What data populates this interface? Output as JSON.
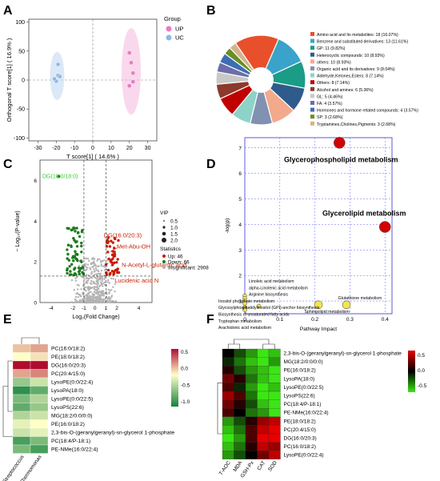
{
  "panels": {
    "A": "A",
    "B": "B",
    "C": "C",
    "D": "D",
    "E": "E",
    "F": "F"
  },
  "chart_data": [
    {
      "id": "A",
      "type": "scatter",
      "xlabel": "T score[1] ( 14.6% )",
      "ylabel": "Orthogonal T score[1] ( 16.9% )",
      "xlim": [
        -35,
        35
      ],
      "ylim": [
        -105,
        105
      ],
      "xticks": [
        "-30",
        "-20",
        "-10",
        "0",
        "10",
        "20",
        "30"
      ],
      "yticks": [
        "-100",
        "-50",
        "0",
        "50",
        "100"
      ],
      "legend_title": "Group",
      "colors": {
        "UP": "#e87bc4",
        "UC": "#8fb8e6"
      },
      "series": [
        {
          "name": "UP",
          "points": [
            [
              20,
              47
            ],
            [
              20,
              -10
            ],
            [
              22,
              -3
            ],
            [
              22,
              12
            ],
            [
              21,
              30
            ]
          ]
        },
        {
          "name": "UC",
          "points": [
            [
              -19,
              27
            ],
            [
              -19,
              8
            ],
            [
              -20,
              -2
            ],
            [
              -21,
              2
            ],
            [
              -18,
              6
            ]
          ]
        }
      ]
    },
    {
      "id": "B",
      "type": "pie",
      "legend": [
        "Amino acid and Its metabolites: 18 (16.07%)",
        "Benzene and substituted derivatives: 13 (11.61%)",
        "GP: 11 (9.82%)",
        "Heterocyclic compounds: 10 (8.93%)",
        "others: 10 (8.93%)",
        "Organic acid and its derivatives: 9 (8.04%)",
        "Aldehyde,Ketones,Esters: 8 (7.14%)",
        "Others: 8 (7.14%)",
        "Alcohol and amines: 6 (5.36%)",
        "GL: 5 (4.46%)",
        "FA: 4 (3.57%)",
        "Hormones and hormone related compounds: 4 (3.57%)",
        "SP: 3 (2.68%)",
        "Tryptamines,Cholines,Pigments: 3 (2.68%)"
      ],
      "values": [
        18,
        13,
        11,
        10,
        10,
        9,
        8,
        8,
        6,
        5,
        4,
        4,
        3,
        3
      ],
      "colors": [
        "#e8502c",
        "#3aa3c9",
        "#1a9c86",
        "#2f5b8c",
        "#f3a98b",
        "#8191b2",
        "#8dd3c7",
        "#c00000",
        "#8b3a2c",
        "#c8c8c8",
        "#6d6da8",
        "#3c6eb4",
        "#6b8e23",
        "#d2b48c"
      ]
    },
    {
      "id": "C",
      "type": "scatter",
      "xlabel": "Log₂(Fold Change)",
      "ylabel": "− Log₁₀(P-value)",
      "xticks": [
        "-4",
        "-2",
        "-1",
        "0",
        "1",
        "2",
        "4"
      ],
      "yticks": [
        "0",
        "2",
        "4",
        "6"
      ],
      "xlim": [
        -5,
        5.2
      ],
      "ylim": [
        0,
        7
      ],
      "labels": [
        {
          "text": "DG(18:0/18:0)",
          "x": -3.3,
          "y": 6.4,
          "color": "#33cc33"
        },
        {
          "text": "DG(16:0/20:3)",
          "x": 0.8,
          "y": 3.3,
          "color": "#cc2200"
        },
        {
          "text": "Met-Abu-OH",
          "x": 1.7,
          "y": 2.7,
          "color": "#cc2200"
        },
        {
          "text": "N-Acetyl-L-glutamic acid",
          "x": 2.0,
          "y": 1.7,
          "color": "#cc2200"
        },
        {
          "text": "Lucidenic acid N",
          "x": 1.5,
          "y": 1.3,
          "color": "#cc2200"
        }
      ],
      "vip_title": "VIP",
      "vip_sizes": [
        "0.5",
        "1.0",
        "1.5",
        "2.0"
      ],
      "stats_title": "Statistics",
      "stats": [
        "Up: 46",
        "Down: 66",
        "Insignificant: 2908"
      ],
      "colors": {
        "up": "#cc1a00",
        "down": "#1a7a1a",
        "insignificant": "#b3b3b3"
      }
    },
    {
      "id": "D",
      "type": "scatter",
      "xlabel": "Pathway Impact",
      "ylabel": "-log(p)",
      "xticks": [
        "0",
        "0.1",
        "0.2",
        "0.3",
        "0.4"
      ],
      "yticks": [
        "1",
        "2",
        "3",
        "4",
        "5",
        "6",
        "7"
      ],
      "xlim": [
        0,
        0.42
      ],
      "ylim": [
        0.5,
        7.4
      ],
      "points": [
        {
          "name": "Glycerophospholipid metabolism",
          "x": 0.27,
          "y": 7.2,
          "color": "#d40000",
          "size": "large"
        },
        {
          "name": "Glycerolipid metabolism",
          "x": 0.4,
          "y": 3.9,
          "color": "#d40000",
          "size": "large"
        },
        {
          "name": "Linoleic acid metabolism",
          "x": 0.0,
          "y": 1.2,
          "color": "#f2e64d",
          "size": "small"
        },
        {
          "name": "alpha-Linolenic acid metabolism",
          "x": 0.0,
          "y": 1.1,
          "color": "#f2e64d",
          "size": "small"
        },
        {
          "name": "Arginine biosynthesis",
          "x": 0.0,
          "y": 1.0,
          "color": "#f2e64d",
          "size": "small"
        },
        {
          "name": "Inositol phosphate metabolism",
          "x": 0.0,
          "y": 0.9,
          "color": "#f2e64d",
          "size": "small"
        },
        {
          "name": "Glycosylphosphatidylinositol (GPI)-anchor biosynthesis",
          "x": 0.04,
          "y": 0.8,
          "color": "#f2e64d",
          "size": "small"
        },
        {
          "name": "Biosynthesis of unsaturated fatty acids",
          "x": 0.0,
          "y": 0.75,
          "color": "#f2e64d",
          "size": "small"
        },
        {
          "name": "Tryptophan metabolism",
          "x": 0.0,
          "y": 0.7,
          "color": "#f2e64d",
          "size": "small"
        },
        {
          "name": "Arachidonic acid metabolism",
          "x": 0.0,
          "y": 0.65,
          "color": "#f2e64d",
          "size": "small"
        },
        {
          "name": "Glutathione metabolism",
          "x": 0.29,
          "y": 0.85,
          "color": "#f2e64d",
          "size": "medium"
        },
        {
          "name": "Sphingolipid metabolism",
          "x": 0.21,
          "y": 0.85,
          "color": "#f2e64d",
          "size": "medium"
        }
      ]
    },
    {
      "id": "E",
      "type": "heatmap",
      "columns": [
        "Streptococcus",
        "Thermomonas"
      ],
      "rows": [
        "PC(16:0/18:2)",
        "PE(18:0/18:2)",
        "DG(16:0/20:3)",
        "PC(20:4/15:0)",
        "LysoPE(0:0/22:4)",
        "LysoPA(18:0)",
        "LysoPE(0:0/22:5)",
        "LysoPS(22:6)",
        "MG(18:2/0:0/0:0)",
        "PE(16:0/18:2)",
        "2,3-bis-O-(geranylgeranyl)-sn-glycerol 1-phosphate",
        "PC(18:4/P-18:1)",
        "PE-NMe(16:0/22:4)"
      ],
      "values": [
        [
          0.2,
          0.3
        ],
        [
          0.0,
          0.1
        ],
        [
          0.8,
          0.9
        ],
        [
          0.3,
          0.4
        ],
        [
          -0.4,
          -0.2
        ],
        [
          -0.8,
          -0.6
        ],
        [
          -0.5,
          -0.3
        ],
        [
          -0.6,
          -0.4
        ],
        [
          -0.3,
          -0.2
        ],
        [
          -0.1,
          0.0
        ],
        [
          -0.2,
          -0.1
        ],
        [
          -0.7,
          -0.5
        ],
        [
          -0.5,
          -0.7
        ]
      ],
      "legend_ticks": [
        "0.5",
        "0.0",
        "-0.5",
        "-1.0"
      ]
    },
    {
      "id": "F",
      "type": "heatmap",
      "columns": [
        "T-AOC",
        "MDA",
        "GSH-Px",
        "CAT",
        "SOD"
      ],
      "rows": [
        "2,3-bis-O-(geranylgeranyl)-sn-glycerol 1-phosphate",
        "MG(18:2/0:0/0:0)",
        "PE(16:0/18:2)",
        "LysoPA(18:0)",
        "LysoPE(0:0/22:5)",
        "LysoPS(22:6)",
        "PC(18:4/P-18:1)",
        "PE-NMe(16:0/22:4)",
        "PE(18:0/18:2)",
        "PC(20:4/15:0)",
        "DG(16:0/20:3)",
        "PC(16:0/18:2)",
        "LysoPE(0:0/22:4)"
      ],
      "values": [
        [
          0.0,
          -0.2,
          -0.4,
          -0.6,
          -0.5
        ],
        [
          -0.1,
          -0.3,
          -0.5,
          -0.6,
          -0.4
        ],
        [
          0.1,
          -0.2,
          -0.4,
          -0.5,
          -0.6
        ],
        [
          0.3,
          0.1,
          -0.3,
          -0.5,
          -0.6
        ],
        [
          0.2,
          -0.1,
          -0.4,
          -0.6,
          -0.5
        ],
        [
          0.4,
          0.2,
          -0.3,
          -0.6,
          -0.7
        ],
        [
          0.3,
          0.1,
          -0.2,
          -0.5,
          -0.6
        ],
        [
          0.2,
          0.0,
          -0.3,
          -0.4,
          -0.6
        ],
        [
          -0.4,
          -0.2,
          0.1,
          0.4,
          0.5
        ],
        [
          -0.5,
          -0.3,
          0.2,
          0.5,
          0.6
        ],
        [
          -0.6,
          -0.4,
          0.2,
          0.6,
          0.6
        ],
        [
          -0.5,
          -0.3,
          0.1,
          0.5,
          0.4
        ],
        [
          -0.4,
          -0.2,
          0.0,
          0.3,
          0.5
        ]
      ],
      "legend_ticks": [
        "0.5",
        "0.0",
        "-0.5"
      ]
    }
  ]
}
